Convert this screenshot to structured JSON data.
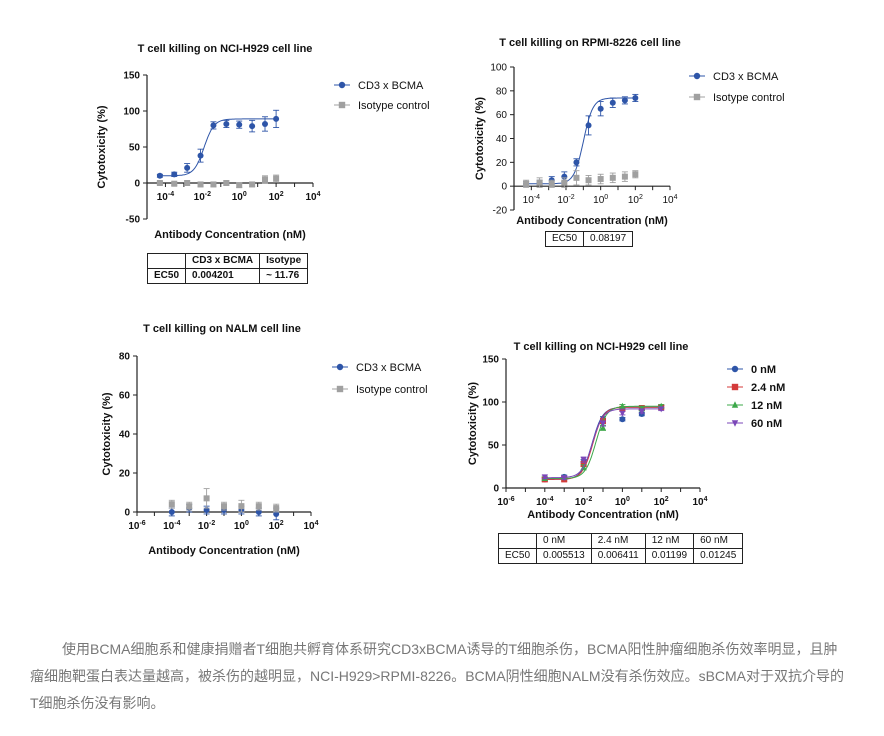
{
  "colors": {
    "blue": "#2e55a8",
    "gray": "#a0a0a0",
    "red": "#d43a3a",
    "green": "#3da84a",
    "purple": "#7b47b8",
    "axis": "#222222"
  },
  "chart_data": [
    {
      "type": "scatter",
      "title": "T cell killing on NCI-H929 cell line",
      "xlabel": "Antibody Concentration (nM)",
      "ylabel": "Cytotoxicity (%)",
      "xscale": "log",
      "xlim": [
        1e-05,
        10000
      ],
      "ylim": [
        -50,
        150
      ],
      "xticks": [
        "10⁻⁴",
        "10⁻²",
        "10⁰",
        "10²",
        "10⁴"
      ],
      "yticks": [
        "150",
        "100",
        "50",
        "0",
        "-50"
      ],
      "legend_position": "right",
      "series": [
        {
          "name": "CD3 x BCMA",
          "marker": "circle",
          "color": "#2e55a8",
          "fit": true,
          "x": [
            5e-05,
            0.0003,
            0.0015,
            0.008,
            0.04,
            0.2,
            1,
            5,
            25,
            100
          ],
          "y": [
            10,
            12,
            21,
            38,
            80,
            82,
            81,
            79,
            82,
            89
          ],
          "err": [
            2,
            3,
            6,
            9,
            5,
            5,
            5,
            8,
            10,
            12
          ]
        },
        {
          "name": "Isotype control",
          "marker": "square",
          "color": "#a0a0a0",
          "fit": false,
          "x": [
            5e-05,
            0.0003,
            0.0015,
            0.008,
            0.04,
            0.2,
            1,
            5,
            25,
            100
          ],
          "y": [
            0,
            -1,
            0,
            -2,
            -2,
            0,
            -3,
            -2,
            5,
            6
          ],
          "err": [
            2,
            2,
            3,
            3,
            3,
            3,
            3,
            3,
            5,
            5
          ]
        }
      ],
      "ec50_table": {
        "headers": [
          "",
          "CD3 x BCMA",
          "Isotype"
        ],
        "rows": [
          [
            "EC50",
            "0.004201",
            "~ 11.76"
          ]
        ]
      }
    },
    {
      "type": "scatter",
      "title": "T cell killing on RPMI-8226 cell line",
      "xlabel": "Antibody Concentration (nM)",
      "ylabel": "Cytotoxicity (%)",
      "xscale": "log",
      "xlim": [
        1e-05,
        10000
      ],
      "ylim": [
        -20,
        100
      ],
      "xticks": [
        "10⁻⁴",
        "10⁻²",
        "10⁰",
        "10²",
        "10⁴"
      ],
      "yticks": [
        "100",
        "80",
        "60",
        "40",
        "20",
        "0",
        "-20"
      ],
      "legend_position": "right",
      "series": [
        {
          "name": "CD3 x BCMA",
          "marker": "circle",
          "color": "#2e55a8",
          "fit": true,
          "x": [
            5e-05,
            0.0003,
            0.0015,
            0.008,
            0.04,
            0.2,
            1,
            5,
            25,
            100
          ],
          "y": [
            2,
            3,
            5,
            8,
            20,
            51,
            65,
            70,
            72,
            74
          ],
          "err": [
            2,
            2,
            3,
            4,
            3,
            8,
            6,
            4,
            3,
            3
          ]
        },
        {
          "name": "Isotype control",
          "marker": "square",
          "color": "#a0a0a0",
          "fit": false,
          "x": [
            5e-05,
            0.0003,
            0.0015,
            0.008,
            0.04,
            0.2,
            1,
            5,
            25,
            100
          ],
          "y": [
            2,
            3,
            2,
            3,
            7,
            5,
            6,
            7,
            8,
            10
          ],
          "err": [
            3,
            4,
            3,
            4,
            6,
            4,
            4,
            4,
            4,
            3
          ]
        }
      ],
      "ec50_table": {
        "headers": [],
        "rows": [
          [
            "EC50",
            "0.08197"
          ]
        ]
      }
    },
    {
      "type": "scatter",
      "title": "T cell killing on NALM cell line",
      "xlabel": "Antibody Concentration (nM)",
      "ylabel": "Cytotoxicity (%)",
      "xscale": "log",
      "xlim": [
        1e-06,
        10000
      ],
      "ylim": [
        0,
        80
      ],
      "xticks": [
        "10⁻⁶",
        "10⁻⁴",
        "10⁻²",
        "10⁰",
        "10²",
        "10⁴"
      ],
      "yticks": [
        "80",
        "60",
        "40",
        "20",
        "0"
      ],
      "legend_position": "right",
      "series": [
        {
          "name": "CD3 x BCMA",
          "marker": "circle",
          "color": "#2e55a8",
          "fit": false,
          "x": [
            0.0001,
            0.001,
            0.01,
            0.1,
            1,
            10,
            100
          ],
          "y": [
            0,
            2,
            1,
            1,
            1,
            0,
            -1
          ],
          "err": [
            2,
            2,
            2,
            2,
            2,
            2,
            3
          ]
        },
        {
          "name": "Isotype control",
          "marker": "square",
          "color": "#a0a0a0",
          "fit": false,
          "x": [
            0.0001,
            0.001,
            0.01,
            0.1,
            1,
            10,
            100
          ],
          "y": [
            4,
            3,
            7,
            3,
            3,
            3,
            2
          ],
          "err": [
            2,
            2,
            5,
            2,
            3,
            2,
            2
          ]
        }
      ]
    },
    {
      "type": "scatter",
      "title": "T cell killing on NCI-H929 cell line",
      "xlabel": "Antibody Concentration (nM)",
      "ylabel": "Cytotoxicity (%)",
      "xscale": "log",
      "xlim": [
        1e-06,
        10000
      ],
      "ylim": [
        0,
        150
      ],
      "xticks": [
        "10⁻⁶",
        "10⁻⁴",
        "10⁻²",
        "10⁰",
        "10²",
        "10⁴"
      ],
      "yticks": [
        "150",
        "100",
        "50",
        "0"
      ],
      "legend_position": "right",
      "series": [
        {
          "name": "0 nM",
          "marker": "circle",
          "color": "#2e55a8",
          "fit": true,
          "x": [
            0.0001,
            0.001,
            0.01,
            0.1,
            1,
            10,
            100
          ],
          "y": [
            10,
            13,
            30,
            80,
            80,
            86,
            94
          ],
          "err": [
            2,
            2,
            3,
            3,
            2,
            2,
            2
          ]
        },
        {
          "name": "2.4 nM",
          "marker": "square",
          "color": "#d43a3a",
          "fit": true,
          "x": [
            0.0001,
            0.001,
            0.01,
            0.1,
            1,
            10,
            100
          ],
          "y": [
            10,
            10,
            28,
            78,
            92,
            93,
            94
          ],
          "err": [
            2,
            2,
            3,
            3,
            2,
            2,
            2
          ]
        },
        {
          "name": "12 nM",
          "marker": "triangle",
          "color": "#3da84a",
          "fit": true,
          "x": [
            0.0001,
            0.001,
            0.01,
            0.1,
            1,
            10,
            100
          ],
          "y": [
            11,
            12,
            24,
            70,
            95,
            92,
            95
          ],
          "err": [
            2,
            2,
            3,
            3,
            2,
            2,
            2
          ]
        },
        {
          "name": "60 nM",
          "marker": "tri-down",
          "color": "#7b47b8",
          "fit": true,
          "x": [
            0.0001,
            0.001,
            0.01,
            0.1,
            1,
            10,
            100
          ],
          "y": [
            13,
            12,
            33,
            75,
            87,
            89,
            92
          ],
          "err": [
            2,
            2,
            3,
            3,
            2,
            2,
            2
          ]
        }
      ],
      "ec50_table": {
        "headers": [
          "",
          "0 nM",
          "2.4 nM",
          "12 nM",
          "60 nM"
        ],
        "rows": [
          [
            "EC50",
            "0.005513",
            "0.006411",
            "0.01199",
            "0.01245"
          ]
        ]
      }
    }
  ],
  "caption": {
    "text": "使用BCMA细胞系和健康捐赠者T细胞共孵育体系研究CD3xBCMA诱导的T细胞杀伤，BCMA阳性肿瘤细胞杀伤效率明显，且肿瘤细胞靶蛋白表达量越高，被杀伤的越明显，NCI-H929>RPMI-8226。BCMA阴性细胞NALM没有杀伤效应。sBCMA对于双抗介导的T细胞杀伤没有影响。"
  }
}
